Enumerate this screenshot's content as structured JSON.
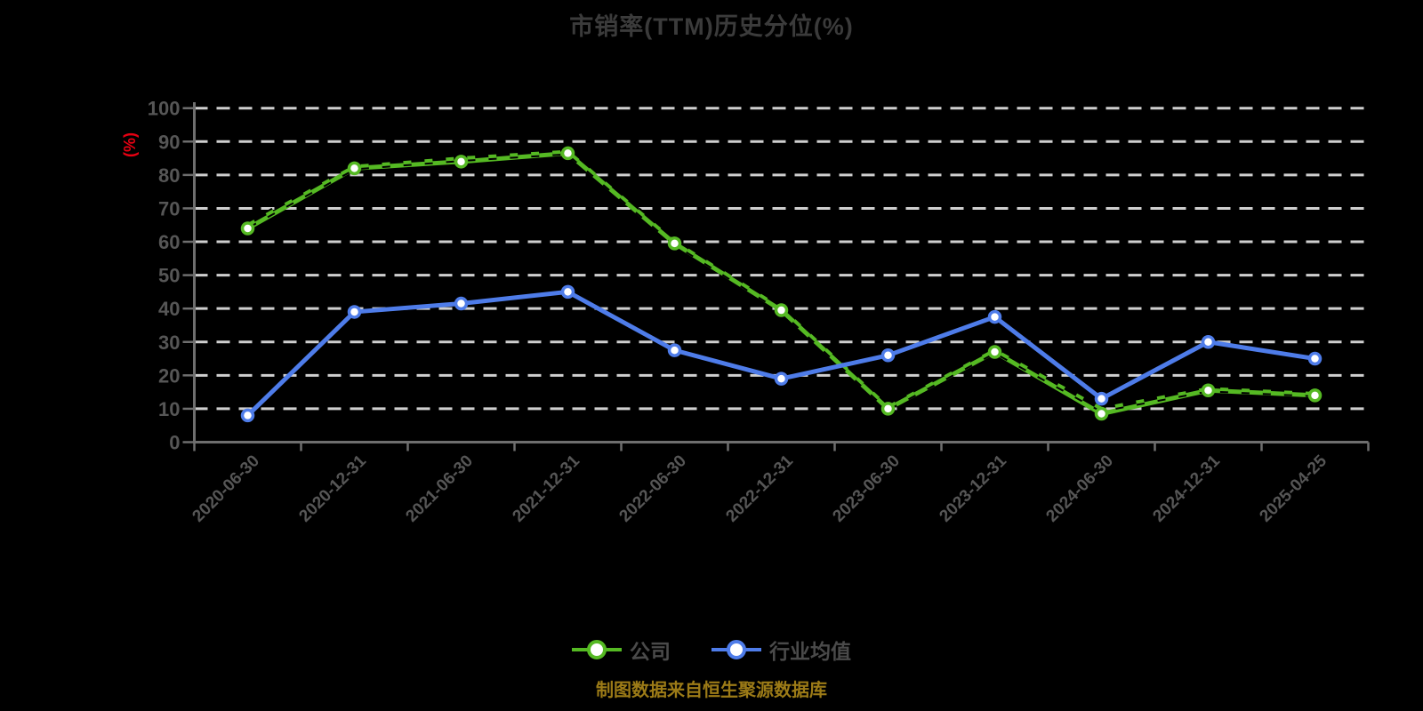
{
  "title": "市销率(TTM)历史分位(%)",
  "footer": "制图数据来自恒生聚源数据库",
  "legend": {
    "items": [
      {
        "label": "公司",
        "color": "#55b923"
      },
      {
        "label": "行业均值",
        "color": "#4e7ce9"
      }
    ]
  },
  "chart_data": {
    "type": "line",
    "categories": [
      "2020-06-30",
      "2020-12-31",
      "2021-06-30",
      "2021-12-31",
      "2022-06-30",
      "2022-12-31",
      "2023-06-30",
      "2023-12-31",
      "2024-06-30",
      "2024-12-31",
      "2025-04-25"
    ],
    "series": [
      {
        "name": "公司",
        "color": "#55b923",
        "line_style": "solid-with-dashed-overlay",
        "values": [
          64,
          82,
          84,
          86.5,
          59.5,
          39.5,
          10,
          27,
          8.5,
          15.5,
          14
        ],
        "overlay_values": [
          65,
          82.5,
          85,
          87,
          60,
          40,
          10.5,
          27.5,
          10,
          16,
          14.5
        ]
      },
      {
        "name": "行业均值",
        "color": "#4e7ce9",
        "line_style": "solid",
        "values": [
          8,
          39,
          41.5,
          45,
          27.5,
          19,
          26,
          37.5,
          13,
          30,
          25
        ]
      }
    ],
    "title": "市销率(TTM)历史分位(%)",
    "xlabel": "",
    "ylabel": "(%)",
    "ylabel_color": "#e60012",
    "ylim": [
      0,
      100
    ],
    "ytick_step": 10,
    "yticks": [
      0,
      10,
      20,
      30,
      40,
      50,
      60,
      70,
      80,
      90,
      100
    ],
    "grid": "horizontal-dashed",
    "gridline_color": "#cfcfcf",
    "axis_color": "#6e6e6e",
    "tick_label_color": "#565656",
    "legend_position": "bottom",
    "marker": "white-filled-circle"
  }
}
